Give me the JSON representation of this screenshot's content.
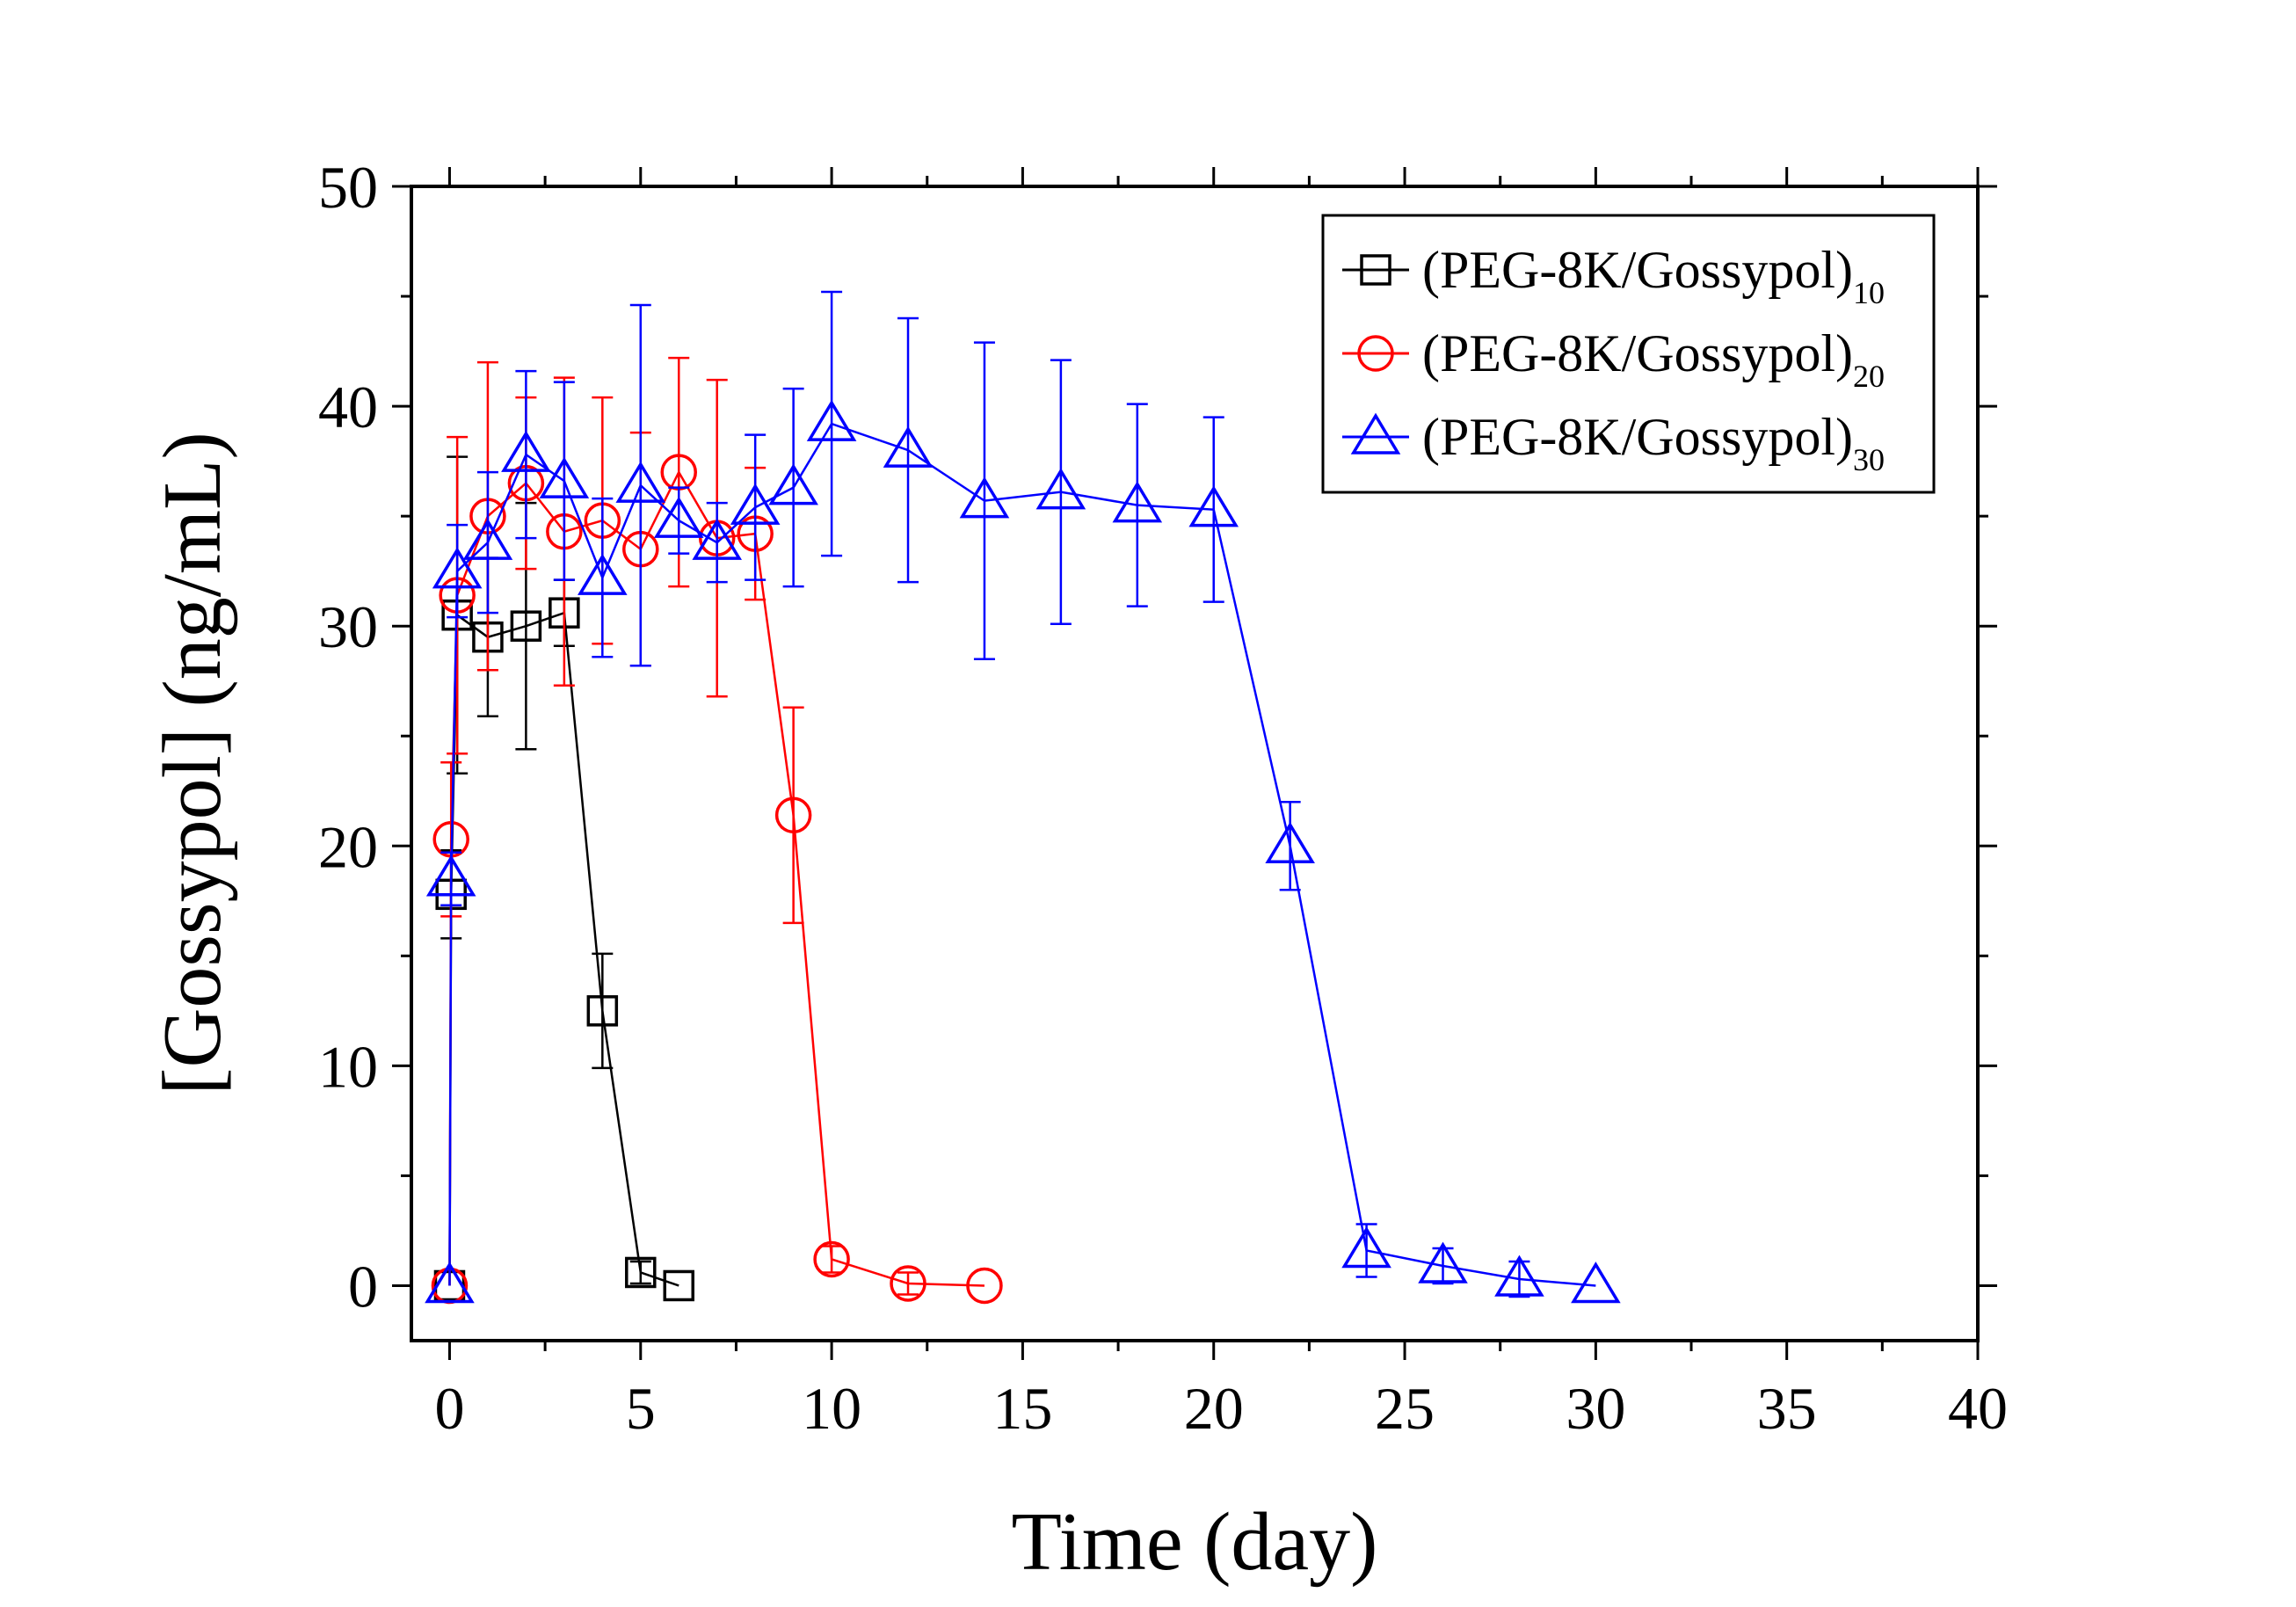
{
  "chart_data": {
    "type": "scatter",
    "xlabel": "Time (day)",
    "ylabel": "[Gossypol] (ng/mL)",
    "xlim": [
      -1,
      40
    ],
    "ylim": [
      -2.5,
      50
    ],
    "xticks": [
      0,
      5,
      10,
      15,
      20,
      25,
      30,
      35,
      40
    ],
    "yticks": [
      0,
      10,
      20,
      30,
      40,
      50
    ],
    "grid": false,
    "legend_position": "top-right",
    "lines_connect_points": true,
    "error_bars": true,
    "series": [
      {
        "name": "(PEG-8K/Gossypol)",
        "subscript": "10",
        "color": "#000000",
        "marker": "square",
        "points": [
          {
            "x": 0,
            "y": 0,
            "err": 0
          },
          {
            "x": 0.04,
            "y": 17.8,
            "err": 2.0
          },
          {
            "x": 0.2,
            "y": 30.5,
            "err": 7.2
          },
          {
            "x": 1,
            "y": 29.5,
            "err": 3.6
          },
          {
            "x": 2,
            "y": 30.0,
            "err": 5.6
          },
          {
            "x": 3,
            "y": 30.6,
            "err": 1.5
          },
          {
            "x": 4,
            "y": 12.5,
            "err": 2.6
          },
          {
            "x": 5,
            "y": 0.6,
            "err": 0.5
          },
          {
            "x": 6,
            "y": 0.0,
            "err": 0
          }
        ]
      },
      {
        "name": "(PEG-8K/Gossypol)",
        "subscript": "20",
        "color": "#ff0000",
        "marker": "circle",
        "points": [
          {
            "x": 0,
            "y": 0,
            "err": 0
          },
          {
            "x": 0.04,
            "y": 20.3,
            "err": 3.5
          },
          {
            "x": 0.2,
            "y": 31.4,
            "err": 7.2
          },
          {
            "x": 1,
            "y": 35.0,
            "err": 7.0
          },
          {
            "x": 2,
            "y": 36.5,
            "err": 3.9
          },
          {
            "x": 3,
            "y": 34.3,
            "err": 7.0
          },
          {
            "x": 4,
            "y": 34.8,
            "err": 5.6
          },
          {
            "x": 5,
            "y": 33.5,
            "err": 5.3
          },
          {
            "x": 6,
            "y": 37.0,
            "err": 5.2
          },
          {
            "x": 7,
            "y": 34.0,
            "err": 7.2
          },
          {
            "x": 8,
            "y": 34.2,
            "err": 3.0
          },
          {
            "x": 9,
            "y": 21.4,
            "err": 4.9
          },
          {
            "x": 10,
            "y": 1.2,
            "err": 0.6
          },
          {
            "x": 12,
            "y": 0.1,
            "err": 0.5
          },
          {
            "x": 14,
            "y": 0.0,
            "err": 0
          }
        ]
      },
      {
        "name": "(PEG-8K/Gossypol)",
        "subscript": "30",
        "color": "#0000ff",
        "marker": "triangle",
        "points": [
          {
            "x": 0,
            "y": 0,
            "err": 0
          },
          {
            "x": 0.04,
            "y": 18.5,
            "err": 1.2
          },
          {
            "x": 0.2,
            "y": 32.5,
            "err": 2.1
          },
          {
            "x": 1,
            "y": 33.8,
            "err": 3.2
          },
          {
            "x": 2,
            "y": 37.8,
            "err": 3.8
          },
          {
            "x": 3,
            "y": 36.6,
            "err": 4.5
          },
          {
            "x": 4,
            "y": 32.2,
            "err": 3.6
          },
          {
            "x": 5,
            "y": 36.4,
            "err": 8.2
          },
          {
            "x": 6,
            "y": 34.8,
            "err": 1.5
          },
          {
            "x": 7,
            "y": 33.8,
            "err": 1.8
          },
          {
            "x": 8,
            "y": 35.4,
            "err": 3.3
          },
          {
            "x": 9,
            "y": 36.3,
            "err": 4.5
          },
          {
            "x": 10,
            "y": 39.2,
            "err": 6.0
          },
          {
            "x": 12,
            "y": 38.0,
            "err": 6.0
          },
          {
            "x": 14,
            "y": 35.7,
            "err": 7.2
          },
          {
            "x": 16,
            "y": 36.1,
            "err": 6.0
          },
          {
            "x": 18,
            "y": 35.5,
            "err": 4.6
          },
          {
            "x": 20,
            "y": 35.3,
            "err": 4.2
          },
          {
            "x": 22,
            "y": 20.0,
            "err": 2.0
          },
          {
            "x": 24,
            "y": 1.6,
            "err": 1.2
          },
          {
            "x": 26,
            "y": 0.9,
            "err": 0.8
          },
          {
            "x": 28,
            "y": 0.3,
            "err": 0.8
          },
          {
            "x": 30,
            "y": 0.0,
            "err": 0
          }
        ]
      }
    ]
  }
}
